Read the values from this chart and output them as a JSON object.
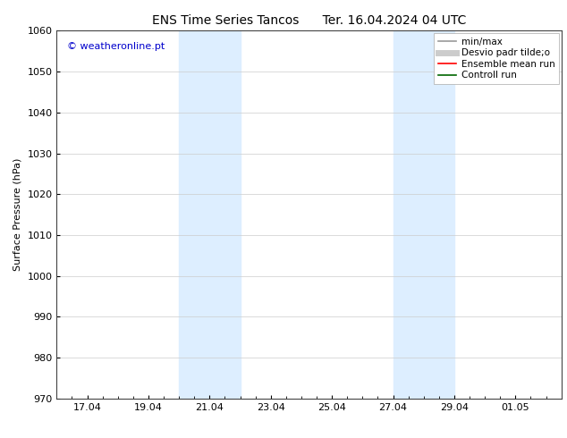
{
  "title_left": "ENS Time Series Tancos",
  "title_right": "Ter. 16.04.2024 04 UTC",
  "ylabel": "Surface Pressure (hPa)",
  "ylim": [
    970,
    1060
  ],
  "yticks": [
    970,
    980,
    990,
    1000,
    1010,
    1020,
    1030,
    1040,
    1050,
    1060
  ],
  "xtick_labels": [
    "17.04",
    "19.04",
    "21.04",
    "23.04",
    "25.04",
    "27.04",
    "29.04",
    "01.05"
  ],
  "watermark": "© weatheronline.pt",
  "watermark_color": "#0000cc",
  "bg_color": "#ffffff",
  "plot_bg_color": "#ffffff",
  "shade_color": "#ddeeff",
  "legend_items": [
    {
      "label": "min/max",
      "color": "#999999",
      "lw": 1.2,
      "ls": "-"
    },
    {
      "label": "Desvio padr tilde;o",
      "color": "#cccccc",
      "lw": 5,
      "ls": "-"
    },
    {
      "label": "Ensemble mean run",
      "color": "#ff0000",
      "lw": 1.2,
      "ls": "-"
    },
    {
      "label": "Controll run",
      "color": "#006600",
      "lw": 1.2,
      "ls": "-"
    }
  ],
  "grid_color": "#cccccc",
  "spine_color": "#444444",
  "title_fontsize": 10,
  "label_fontsize": 8,
  "tick_fontsize": 8,
  "legend_fontsize": 7.5
}
